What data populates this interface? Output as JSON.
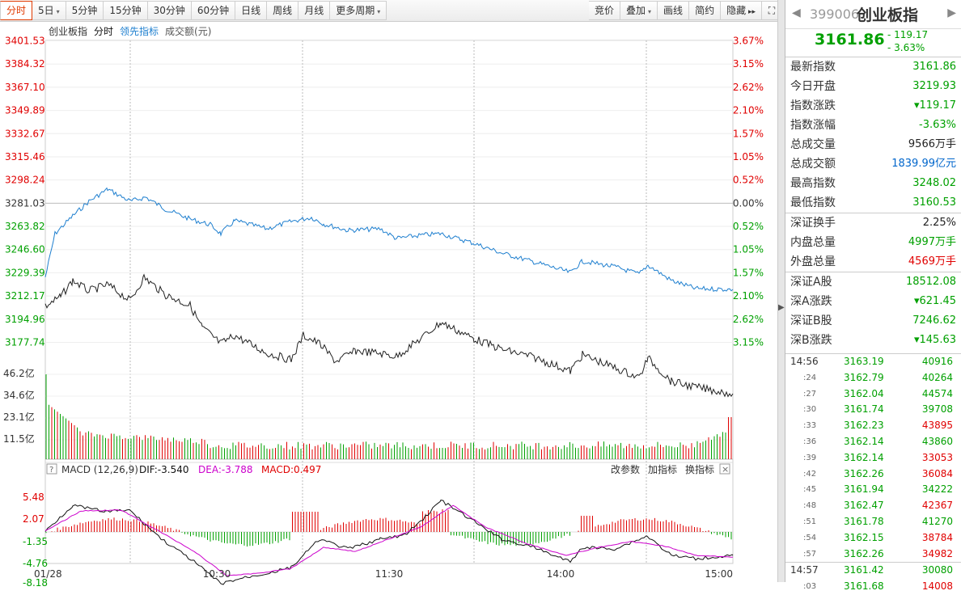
{
  "toolbar": {
    "left": [
      {
        "label": "分时",
        "active": true
      },
      {
        "label": "5日",
        "dropdown": true
      },
      {
        "label": "5分钟"
      },
      {
        "label": "15分钟"
      },
      {
        "label": "30分钟"
      },
      {
        "label": "60分钟"
      },
      {
        "label": "日线"
      },
      {
        "label": "周线"
      },
      {
        "label": "月线"
      },
      {
        "label": "更多周期",
        "dropdown": true
      }
    ],
    "right": [
      {
        "label": "竞价"
      },
      {
        "label": "叠加",
        "dropdown": true
      },
      {
        "label": "画线"
      },
      {
        "label": "简约"
      },
      {
        "label": "隐藏"
      }
    ],
    "hide_arrow_icon": "double-right-arrow-icon",
    "fullscreen_icon": "fullscreen-icon"
  },
  "legend": {
    "name": "创业板指",
    "mode": "分时",
    "lead": "领先指标",
    "vol": "成交额(元)"
  },
  "price_axis": {
    "left": [
      "3401.53",
      "3384.32",
      "3367.10",
      "3349.89",
      "3332.67",
      "3315.46",
      "3298.24",
      "3281.03",
      "3263.82",
      "3246.60",
      "3229.39",
      "3212.17",
      "3194.96",
      "3177.74"
    ],
    "right": [
      "3.67%",
      "3.15%",
      "2.62%",
      "2.10%",
      "1.57%",
      "1.05%",
      "0.52%",
      "0.00%",
      "0.52%",
      "1.05%",
      "1.57%",
      "2.10%",
      "2.62%",
      "3.15%"
    ]
  },
  "volume_axis": [
    "46.2亿",
    "34.6亿",
    "23.1亿",
    "11.5亿"
  ],
  "macd": {
    "title": "MACD (12,26,9)",
    "dif": "DIF:-3.540",
    "dea": "DEA:-3.788",
    "macd": "MACD:0.497",
    "axis": [
      "5.48",
      "2.07",
      "-1.35",
      "-4.76",
      "-8.18"
    ],
    "buttons": [
      "改参数",
      "加指标",
      "换指标"
    ],
    "help_icon": "question-icon",
    "close_icon": "close-icon"
  },
  "time_axis": [
    "01/28",
    "10:30",
    "11:30",
    "14:00",
    "15:00"
  ],
  "colors": {
    "up": "#e00000",
    "down": "#00a000",
    "price_line": "#1e7fcf",
    "lead_line": "#222222",
    "dea": "#cc00cc",
    "accent": "#e03a00"
  },
  "quote": {
    "code": "399006",
    "name": "创业板指",
    "price": "3161.86",
    "change": "- 119.17",
    "change_pct": "- 3.63%",
    "rows": [
      {
        "label": "最新指数",
        "value": "3161.86",
        "color": "g"
      },
      {
        "label": "今日开盘",
        "value": "3219.93",
        "color": "g"
      },
      {
        "label": "指数涨跌",
        "value": "▾119.17",
        "color": "g"
      },
      {
        "label": "指数涨幅",
        "value": "-3.63%",
        "color": "g"
      },
      {
        "label": "总成交量",
        "value": "9566万手",
        "color": "k"
      },
      {
        "label": "总成交额",
        "value": "1839.99亿元",
        "color": "b"
      },
      {
        "label": "最高指数",
        "value": "3248.02",
        "color": "g"
      },
      {
        "label": "最低指数",
        "value": "3160.53",
        "color": "g"
      }
    ],
    "rows2": [
      {
        "label": "深证换手",
        "value": "2.25%",
        "color": "k"
      },
      {
        "label": "内盘总量",
        "value": "4997万手",
        "color": "g"
      },
      {
        "label": "外盘总量",
        "value": "4569万手",
        "color": "r"
      }
    ],
    "rows3": [
      {
        "label": "深证A股",
        "value": "18512.08",
        "color": "g"
      },
      {
        "label": "深A涨跌",
        "value": "▾621.45",
        "color": "g"
      },
      {
        "label": "深证B股",
        "value": "7246.62",
        "color": "g"
      },
      {
        "label": "深B涨跌",
        "value": "▾145.63",
        "color": "g"
      }
    ]
  },
  "ticks": [
    {
      "time": "14:56",
      "full": true,
      "price": "3163.19",
      "vol": "40916",
      "vc": "g"
    },
    {
      "time": ":24",
      "price": "3162.79",
      "vol": "40264",
      "vc": "g"
    },
    {
      "time": ":27",
      "price": "3162.04",
      "vol": "44574",
      "vc": "g"
    },
    {
      "time": ":30",
      "price": "3161.74",
      "vol": "39708",
      "vc": "g"
    },
    {
      "time": ":33",
      "price": "3162.23",
      "vol": "43895",
      "vc": "r"
    },
    {
      "time": ":36",
      "price": "3162.14",
      "vol": "43860",
      "vc": "g"
    },
    {
      "time": ":39",
      "price": "3162.14",
      "vol": "33053",
      "vc": "r"
    },
    {
      "time": ":42",
      "price": "3162.26",
      "vol": "36084",
      "vc": "r"
    },
    {
      "time": ":45",
      "price": "3161.94",
      "vol": "34222",
      "vc": "g"
    },
    {
      "time": ":48",
      "price": "3162.47",
      "vol": "42367",
      "vc": "r"
    },
    {
      "time": ":51",
      "price": "3161.78",
      "vol": "41270",
      "vc": "g"
    },
    {
      "time": ":54",
      "price": "3162.15",
      "vol": "38784",
      "vc": "r"
    },
    {
      "time": ":57",
      "price": "3162.26",
      "vol": "34982",
      "vc": "r"
    },
    {
      "time": "14:57",
      "full": true,
      "price": "3161.42",
      "vol": "30080",
      "vc": "g"
    },
    {
      "time": ":03",
      "price": "3161.68",
      "vol": "14008",
      "vc": "r"
    }
  ]
}
